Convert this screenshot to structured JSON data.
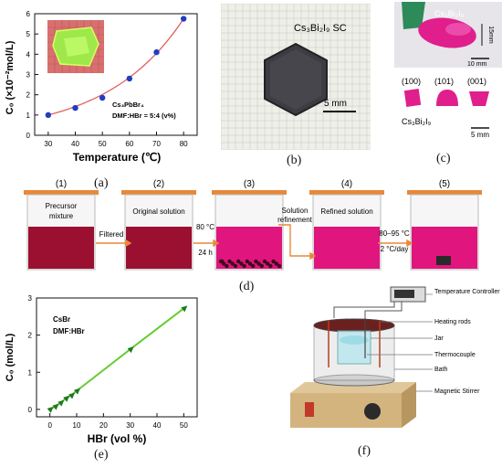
{
  "panel_a": {
    "ylabel": "C₀ (×10⁻²mol/L)",
    "xlabel": "Temperature (℃)",
    "annot_line1": "Cs₃PbBr₄",
    "annot_line2": "DMF:HBr = 5:4 (v%)",
    "caption": "(a)"
  },
  "panel_b": {
    "label": "Cs₃Bi₂I₉ SC",
    "scale": "5 mm",
    "caption": "(b)"
  },
  "panel_c": {
    "top_label": "Cs₃Bi₂I₉",
    "top_scale_v": "15mm",
    "top_scale_h": "10 mm",
    "faces": [
      "(100)",
      "(101)",
      "(001)"
    ],
    "bottom_label": "Cs₃Bi₂I₉",
    "bottom_scale": "5 mm",
    "caption": "(c)"
  },
  "panel_d": {
    "steps": [
      "(1)",
      "(2)",
      "(3)",
      "(4)",
      "(5)"
    ],
    "beaker_text": [
      "Precursor mixture",
      "Original solution",
      "",
      "Refined solution",
      ""
    ],
    "arrow1": "Filtered",
    "arrow2_a": "80 °C",
    "arrow2_b": "24 h",
    "arrow3_a": "Solution",
    "arrow3_b": "refinement",
    "arrow4_a": "80–95 °C",
    "arrow4_b": "2 °C/day",
    "caption": "(d)"
  },
  "panel_e": {
    "ylabel": "C₀ (mol/L)",
    "xlabel": "HBr (vol %)",
    "annot_line1": "CsBr",
    "annot_line2": "DMF:HBr",
    "caption": "(e)"
  },
  "panel_f": {
    "labels": [
      "Temperature Controller",
      "Heating rods",
      "Jar",
      "Thermocouple",
      "Bath",
      "Magnetic Stirrer"
    ],
    "caption": "(f)"
  },
  "chart_data": [
    {
      "type": "scatter",
      "x": [
        30,
        40,
        50,
        60,
        70,
        80
      ],
      "y": [
        1.0,
        1.35,
        1.85,
        2.8,
        4.1,
        5.75
      ],
      "xlim": [
        25,
        85
      ],
      "ylim": [
        0,
        6
      ],
      "xticks": [
        30,
        40,
        50,
        60,
        70,
        80
      ],
      "yticks": [
        0,
        1,
        2,
        3,
        4,
        5,
        6
      ],
      "fit": "exponential",
      "marker_color": "#1f3fbf",
      "line_color": "#e06060"
    },
    {
      "type": "line",
      "x": [
        0,
        2,
        4,
        6,
        8,
        10,
        30,
        50
      ],
      "y": [
        0.0,
        0.08,
        0.18,
        0.3,
        0.38,
        0.5,
        1.62,
        2.72
      ],
      "xlim": [
        -5,
        55
      ],
      "ylim": [
        -0.2,
        3.0
      ],
      "xticks": [
        0,
        10,
        20,
        30,
        40,
        50
      ],
      "yticks": [
        0,
        1,
        2,
        3
      ],
      "marker_color": "#1d7a1d",
      "line_color": "#66cc33"
    }
  ]
}
